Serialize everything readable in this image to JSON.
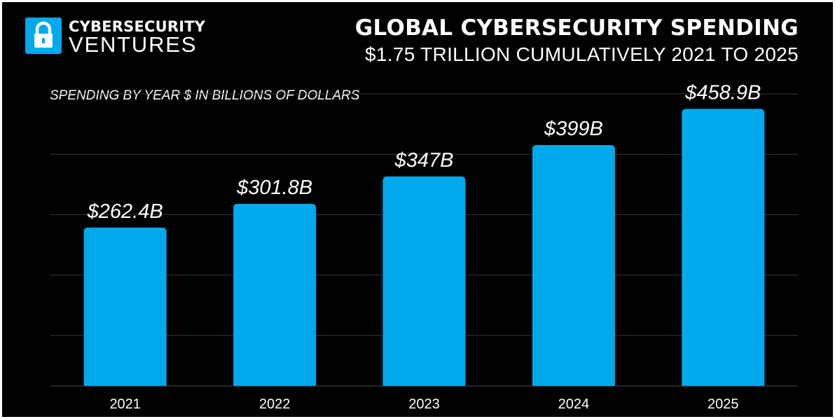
{
  "brand": {
    "line1": "CYBERSECURITY",
    "line2": "VENTURES",
    "icon": "padlock-icon",
    "color": "#00a8ec"
  },
  "chart_data": {
    "type": "bar",
    "title": "GLOBAL CYBERSECURITY SPENDING",
    "subtitle": "$1.75 TRILLION CUMULATIVELY 2021 TO 2025",
    "ylabel": "SPENDING BY YEAR $ IN BILLIONS OF DOLLARS",
    "xlabel": "",
    "categories": [
      "2021",
      "2022",
      "2023",
      "2024",
      "2025"
    ],
    "values": [
      262.4,
      301.8,
      347,
      399,
      458.9
    ],
    "data_labels": [
      "$262.4B",
      "$301.8B",
      "$347B",
      "$399B",
      "$458.9B"
    ],
    "ylim": [
      0,
      500
    ],
    "grid": true,
    "bar_color": "#00a8ec",
    "background": "#000000"
  }
}
